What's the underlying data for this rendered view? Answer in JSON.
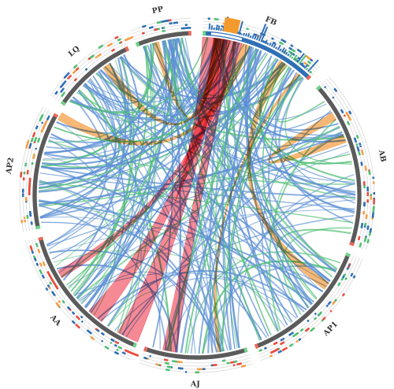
{
  "segments": [
    {
      "label": "FB",
      "color": "#2f6fb5",
      "startDeg": 2,
      "endDeg": 44
    },
    {
      "label": "AB",
      "color": "#5b5b5b",
      "startDeg": 48,
      "endDeg": 108
    },
    {
      "label": "AP1",
      "color": "#5b5b5b",
      "startDeg": 111,
      "endDeg": 159
    },
    {
      "label": "AJ",
      "color": "#5b5b5b",
      "startDeg": 162,
      "endDeg": 199
    },
    {
      "label": "AA",
      "color": "#5b5b5b",
      "startDeg": 202,
      "endDeg": 255
    },
    {
      "label": "AP2",
      "color": "#5b5b5b",
      "startDeg": 258,
      "endDeg": 300
    },
    {
      "label": "LQ",
      "color": "#5b5b5b",
      "startDeg": 304,
      "endDeg": 335
    },
    {
      "label": "PP",
      "color": "#5b5b5b",
      "startDeg": 338,
      "endDeg": 358
    }
  ],
  "links": [
    {
      "from": 6,
      "to": 206,
      "w": 8,
      "kind": "red"
    },
    {
      "from": 9,
      "to": 220,
      "w": 6,
      "kind": "red"
    },
    {
      "from": 12,
      "to": 190,
      "w": 5,
      "kind": "red"
    },
    {
      "from": 15,
      "to": 240,
      "w": 3,
      "kind": "red"
    },
    {
      "from": 18,
      "to": 300,
      "w": 3,
      "kind": "orange"
    },
    {
      "from": 8,
      "to": 325,
      "w": 3,
      "kind": "orange"
    },
    {
      "from": 33,
      "to": 125,
      "w": 3,
      "kind": "orange"
    },
    {
      "from": 40,
      "to": 172,
      "w": 1,
      "kind": "orange"
    },
    {
      "from": 7,
      "to": 345,
      "w": 2,
      "kind": "orange"
    },
    {
      "from": 69,
      "to": 60,
      "w": 3,
      "kind": "orange"
    }
  ]
}
